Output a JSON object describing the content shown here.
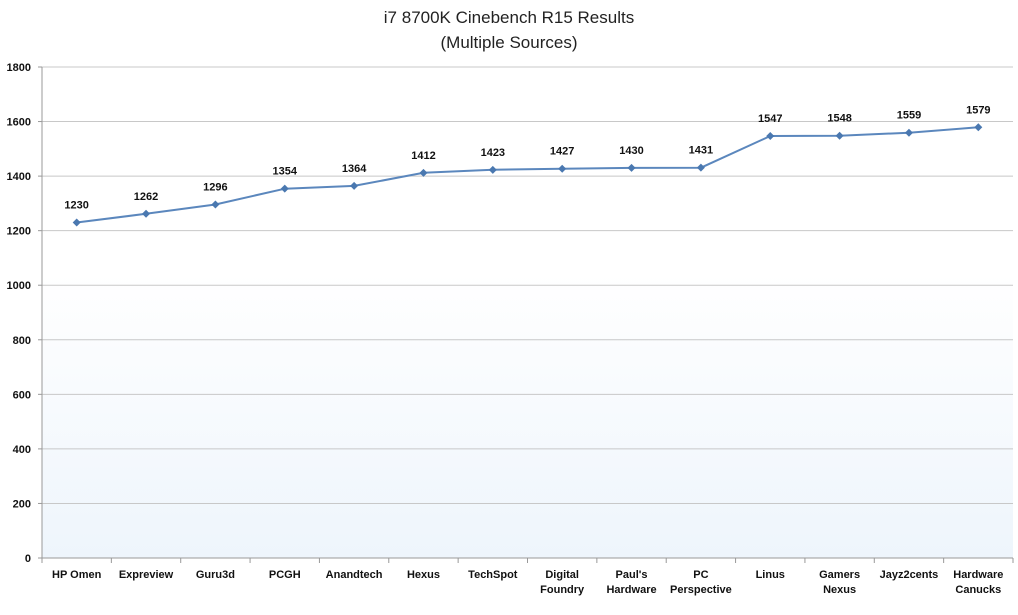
{
  "chart_data": {
    "type": "line",
    "title": "i7 8700K Cinebench R15 Results",
    "subtitle": "(Multiple Sources)",
    "categories": [
      [
        "HP Omen"
      ],
      [
        "Expreview"
      ],
      [
        "Guru3d"
      ],
      [
        "PCGH"
      ],
      [
        "Anandtech"
      ],
      [
        "Hexus"
      ],
      [
        "TechSpot"
      ],
      [
        "Digital",
        "Foundry"
      ],
      [
        "Paul's",
        "Hardware"
      ],
      [
        "PC",
        "Perspective"
      ],
      [
        "Linus"
      ],
      [
        "Gamers",
        "Nexus"
      ],
      [
        "Jayz2cents"
      ],
      [
        "Hardware",
        "Canucks"
      ]
    ],
    "values": [
      1230,
      1262,
      1296,
      1354,
      1364,
      1412,
      1423,
      1427,
      1430,
      1431,
      1547,
      1548,
      1559,
      1579
    ],
    "ylim": [
      0,
      1800
    ],
    "yticks": [
      0,
      200,
      400,
      600,
      800,
      1000,
      1200,
      1400,
      1600,
      1800
    ],
    "grid": true,
    "data_labels": true,
    "legend": "none",
    "colors": {
      "line": "#5b87bd",
      "marker": "#4a78b0",
      "grid": "#c8c8c8",
      "axis": "#999999",
      "plot_bg_top": "#ffffff",
      "plot_bg_bottom": "#eef5fc"
    }
  }
}
